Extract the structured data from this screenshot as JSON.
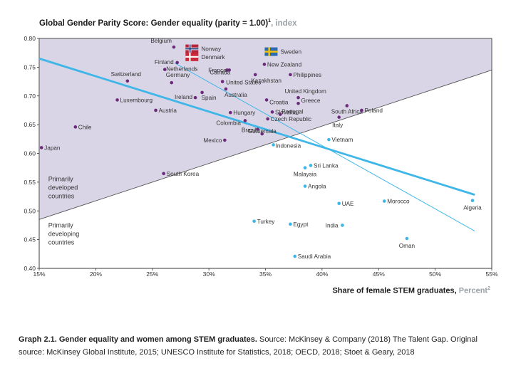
{
  "chart_data": {
    "type": "scatter",
    "title": "Global Gender Parity Score: Gender equality (parity = 1.00)",
    "title_sup": "1",
    "title_unit": ", index",
    "xlabel": "Share of female STEM graduates,",
    "xlabel_unit": " Percent",
    "xlabel_sup": "2",
    "xlim": [
      15,
      55
    ],
    "ylim": [
      0.4,
      0.8
    ],
    "x_ticks": [
      "15%",
      "20%",
      "25%",
      "30%",
      "35%",
      "40%",
      "45%",
      "50%",
      "55%"
    ],
    "y_ticks": [
      "0.80",
      "0.75",
      "0.70",
      "0.65",
      "0.60",
      "0.55",
      "0.50",
      "0.45",
      "0.40"
    ],
    "regions": {
      "developed": [
        "Primarily",
        "developed",
        "countries"
      ],
      "developing": [
        "Primarily",
        "developing",
        "countries"
      ]
    },
    "divider_line": {
      "x": [
        15,
        55
      ],
      "y": [
        0.485,
        0.745
      ]
    },
    "trend_line_bold": {
      "x": [
        15,
        53.5
      ],
      "y": [
        0.765,
        0.528
      ]
    },
    "trend_line_thin": {
      "x": [
        27,
        53.5
      ],
      "y": [
        0.757,
        0.465
      ]
    },
    "flag_countries": [
      {
        "name": "Norway",
        "flag": "norway",
        "color": "#b5263b",
        "x": 28.5,
        "y": 0.782
      },
      {
        "name": "Denmark",
        "flag": "denmark",
        "color": "#c8283a",
        "x": 28.5,
        "y": 0.768
      },
      {
        "name": "Sweden",
        "flag": "sweden",
        "color": "#2a6bb2",
        "x": 35.5,
        "y": 0.777
      }
    ],
    "series": [
      {
        "name": "Primarily developed countries",
        "color": "#6b2a7a",
        "points": [
          {
            "label": "Belgium",
            "x": 26.9,
            "y": 0.785
          },
          {
            "label": "Finland",
            "x": 27.2,
            "y": 0.758
          },
          {
            "label": "Netherlands",
            "x": 26.1,
            "y": 0.746
          },
          {
            "label": "Germany",
            "x": 26.7,
            "y": 0.723
          },
          {
            "label": "Switzerland",
            "x": 22.8,
            "y": 0.726
          },
          {
            "label": "Luxembourg",
            "x": 21.9,
            "y": 0.693
          },
          {
            "label": "Austria",
            "x": 25.3,
            "y": 0.675
          },
          {
            "label": "Chile",
            "x": 18.2,
            "y": 0.646
          },
          {
            "label": "Japan",
            "x": 15.2,
            "y": 0.61
          },
          {
            "label": "South Korea",
            "x": 26.0,
            "y": 0.565
          },
          {
            "label": "Ireland",
            "x": 28.8,
            "y": 0.697
          },
          {
            "label": "Spain",
            "x": 29.4,
            "y": 0.706
          },
          {
            "label": "Canada",
            "x": 31.6,
            "y": 0.745
          },
          {
            "label": "France",
            "x": 31.8,
            "y": 0.745
          },
          {
            "label": "United States",
            "x": 31.2,
            "y": 0.725
          },
          {
            "label": "Australia",
            "x": 31.5,
            "y": 0.712
          },
          {
            "label": "New Zealand",
            "x": 34.9,
            "y": 0.755
          },
          {
            "label": "Philippines",
            "x": 37.2,
            "y": 0.737
          },
          {
            "label": "Kazakhstan",
            "x": 34.1,
            "y": 0.737
          },
          {
            "label": "United Kingdom",
            "x": 37.9,
            "y": 0.697
          },
          {
            "label": "Croatia",
            "x": 35.1,
            "y": 0.693
          },
          {
            "label": "Greece",
            "x": 37.9,
            "y": 0.687
          },
          {
            "label": "South Africa",
            "x": 42.2,
            "y": 0.683
          },
          {
            "label": "Poland",
            "x": 43.5,
            "y": 0.675
          },
          {
            "label": "Hungary",
            "x": 31.9,
            "y": 0.671
          },
          {
            "label": "Slovakia",
            "x": 35.6,
            "y": 0.672
          },
          {
            "label": "Portugal",
            "x": 36.3,
            "y": 0.668
          },
          {
            "label": "Czech Republic",
            "x": 35.2,
            "y": 0.66
          },
          {
            "label": "Italy",
            "x": 41.5,
            "y": 0.663
          },
          {
            "label": "Colombia",
            "x": 33.2,
            "y": 0.657
          },
          {
            "label": "Brazil",
            "x": 34.3,
            "y": 0.642
          },
          {
            "label": "Mexico",
            "x": 31.4,
            "y": 0.623
          },
          {
            "label": "Guatemala",
            "x": 34.7,
            "y": 0.634
          }
        ]
      },
      {
        "name": "Primarily developing countries",
        "color": "#3fb6e8",
        "points": [
          {
            "label": "Indonesia",
            "x": 35.7,
            "y": 0.615
          },
          {
            "label": "Vietnam",
            "x": 40.6,
            "y": 0.624
          },
          {
            "label": "Sri Lanka",
            "x": 39.0,
            "y": 0.579
          },
          {
            "label": "Malaysia",
            "x": 38.5,
            "y": 0.575
          },
          {
            "label": "Angola",
            "x": 38.5,
            "y": 0.543
          },
          {
            "label": "UAE",
            "x": 41.5,
            "y": 0.513
          },
          {
            "label": "Morocco",
            "x": 45.5,
            "y": 0.517
          },
          {
            "label": "Algeria",
            "x": 53.3,
            "y": 0.518
          },
          {
            "label": "Turkey",
            "x": 34.0,
            "y": 0.482
          },
          {
            "label": "Egypt",
            "x": 37.2,
            "y": 0.477
          },
          {
            "label": "India",
            "x": 41.8,
            "y": 0.475
          },
          {
            "label": "Oman",
            "x": 47.5,
            "y": 0.452
          },
          {
            "label": "Saudi Arabia",
            "x": 37.6,
            "y": 0.421
          }
        ]
      }
    ]
  },
  "caption": {
    "bold": "Graph 2.1. Gender equality and women among STEM graduates.",
    "text": " Source: McKinsey & Company (2018) The Talent Gap. Original source: McKinsey Global Institute, 2015; UNESCO Institute for Statistics, 2018; OECD, 2018; Stoet & Geary, 2018"
  }
}
